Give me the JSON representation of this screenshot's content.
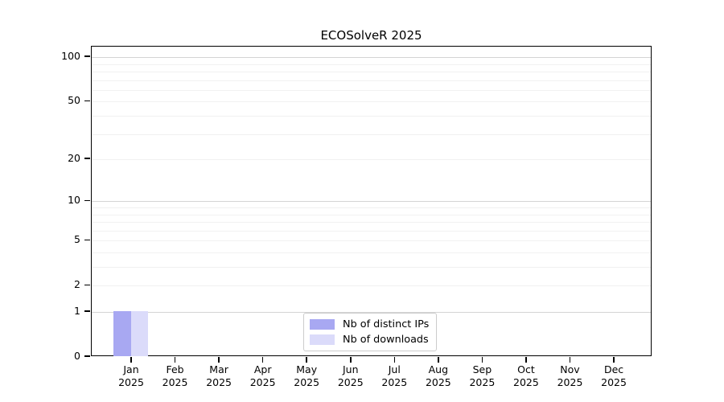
{
  "chart_data": {
    "type": "bar",
    "title": "ECOSolveR 2025",
    "xlabel": "",
    "ylabel": "",
    "categories": [
      {
        "month": "Jan",
        "year": "2025"
      },
      {
        "month": "Feb",
        "year": "2025"
      },
      {
        "month": "Mar",
        "year": "2025"
      },
      {
        "month": "Apr",
        "year": "2025"
      },
      {
        "month": "May",
        "year": "2025"
      },
      {
        "month": "Jun",
        "year": "2025"
      },
      {
        "month": "Jul",
        "year": "2025"
      },
      {
        "month": "Aug",
        "year": "2025"
      },
      {
        "month": "Sep",
        "year": "2025"
      },
      {
        "month": "Oct",
        "year": "2025"
      },
      {
        "month": "Nov",
        "year": "2025"
      },
      {
        "month": "Dec",
        "year": "2025"
      }
    ],
    "series": [
      {
        "name": "Nb of distinct IPs",
        "color": "#a8a8f2",
        "values": [
          1,
          0,
          0,
          0,
          0,
          0,
          0,
          0,
          0,
          0,
          0,
          0
        ]
      },
      {
        "name": "Nb of downloads",
        "color": "#dbdbfa",
        "values": [
          1,
          0,
          0,
          0,
          0,
          0,
          0,
          0,
          0,
          0,
          0,
          0
        ]
      }
    ],
    "yscale": "log1p",
    "ylim": [
      0,
      118
    ],
    "yticks": [
      0,
      1,
      2,
      5,
      10,
      20,
      50,
      100
    ],
    "major_gridlines": [
      1,
      10,
      100
    ],
    "minor_gridlines": [
      2,
      3,
      4,
      5,
      6,
      7,
      8,
      9,
      20,
      30,
      40,
      50,
      60,
      70,
      80,
      90
    ],
    "grid": "horizontal",
    "legend_position": "lower center",
    "colors": {
      "background": "#ffffff",
      "axis": "#000000",
      "major_grid": "#d4d4d4",
      "minor_grid": "#f1f1f1",
      "text": "#000000"
    }
  }
}
